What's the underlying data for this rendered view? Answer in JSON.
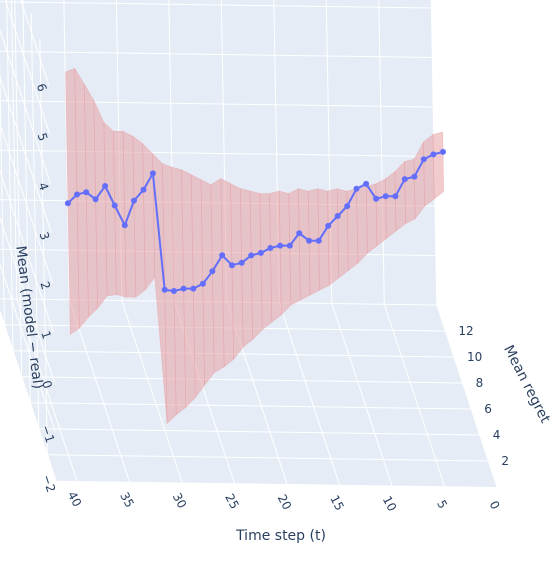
{
  "chart_data": {
    "type": "line",
    "projection": "3d",
    "xlabel": "Time step (t)",
    "ylabel": "Mean regret",
    "zlabel": "Mean (model − real)",
    "x_ticks": [
      "40",
      "35",
      "30",
      "25",
      "20",
      "15",
      "10",
      "5",
      "0"
    ],
    "y_ticks": [
      "2",
      "4",
      "6",
      "8",
      "10",
      "12"
    ],
    "z_ticks": [
      "−2",
      "−1",
      "0",
      "1",
      "2",
      "3",
      "4",
      "5",
      "6"
    ],
    "colors": {
      "line": "#636efa",
      "band": "#e8a1a4",
      "scene_bg": "#e5ecf6",
      "grid": "#ffffff"
    },
    "series": [
      {
        "kind": "mean-line",
        "x": [
          40,
          39,
          38,
          37,
          36,
          35,
          34,
          33,
          32,
          31,
          30,
          29,
          28,
          27,
          26,
          25,
          24,
          23,
          22,
          21,
          20,
          19,
          18,
          17,
          16,
          15,
          14,
          13,
          12,
          11,
          10,
          9,
          8,
          7,
          6,
          5,
          4,
          3,
          2,
          1
        ],
        "y": [
          1.0,
          1.3,
          1.6,
          1.9,
          2.1,
          2.4,
          2.6,
          2.8,
          3.0,
          3.2,
          3.4,
          3.7,
          3.9,
          4.1,
          4.3,
          4.5,
          4.6,
          4.8,
          5.0,
          5.2,
          5.4,
          5.6,
          5.8,
          6.0,
          6.2,
          6.4,
          6.6,
          6.8,
          7.0,
          7.2,
          7.4,
          7.6,
          7.8,
          8.0,
          8.2,
          8.4,
          8.6,
          8.8,
          9.0,
          9.2
        ],
        "z": [
          3.35,
          3.45,
          3.42,
          3.2,
          3.42,
          2.95,
          2.5,
          2.95,
          3.12,
          3.4,
          1.0,
          0.9,
          0.9,
          0.85,
          0.9,
          1.1,
          1.4,
          1.15,
          1.15,
          1.25,
          1.25,
          1.3,
          1.3,
          1.25,
          1.45,
          1.25,
          1.2,
          1.45,
          1.6,
          1.75,
          2.05,
          2.1,
          1.75,
          1.75,
          1.7,
          2.0,
          2.0,
          2.3,
          2.35,
          2.35
        ]
      },
      {
        "kind": "band-upper",
        "z": [
          6.0,
          6.0,
          5.6,
          5.2,
          4.7,
          4.45,
          4.4,
          4.25,
          4.05,
          3.8,
          3.55,
          3.4,
          3.3,
          3.15,
          3.0,
          2.85,
          2.95,
          2.8,
          2.65,
          2.55,
          2.45,
          2.4,
          2.4,
          2.3,
          2.35,
          2.25,
          2.25,
          2.15,
          2.15,
          2.05,
          2.05,
          2.05,
          2.05,
          2.1,
          2.2,
          2.35,
          2.35,
          2.65,
          2.75,
          2.75
        ]
      },
      {
        "kind": "band-lower",
        "z": [
          0.7,
          0.75,
          0.9,
          1.0,
          1.2,
          1.15,
          1.05,
          1.0,
          1.1,
          1.3,
          -1.7,
          -1.6,
          -1.5,
          -1.35,
          -1.15,
          -0.95,
          -0.85,
          -0.75,
          -0.55,
          -0.45,
          -0.3,
          -0.2,
          -0.1,
          0.05,
          0.1,
          0.15,
          0.2,
          0.25,
          0.35,
          0.45,
          0.55,
          0.7,
          0.8,
          0.9,
          1.0,
          1.1,
          1.15,
          1.35,
          1.45,
          1.55
        ]
      }
    ]
  }
}
